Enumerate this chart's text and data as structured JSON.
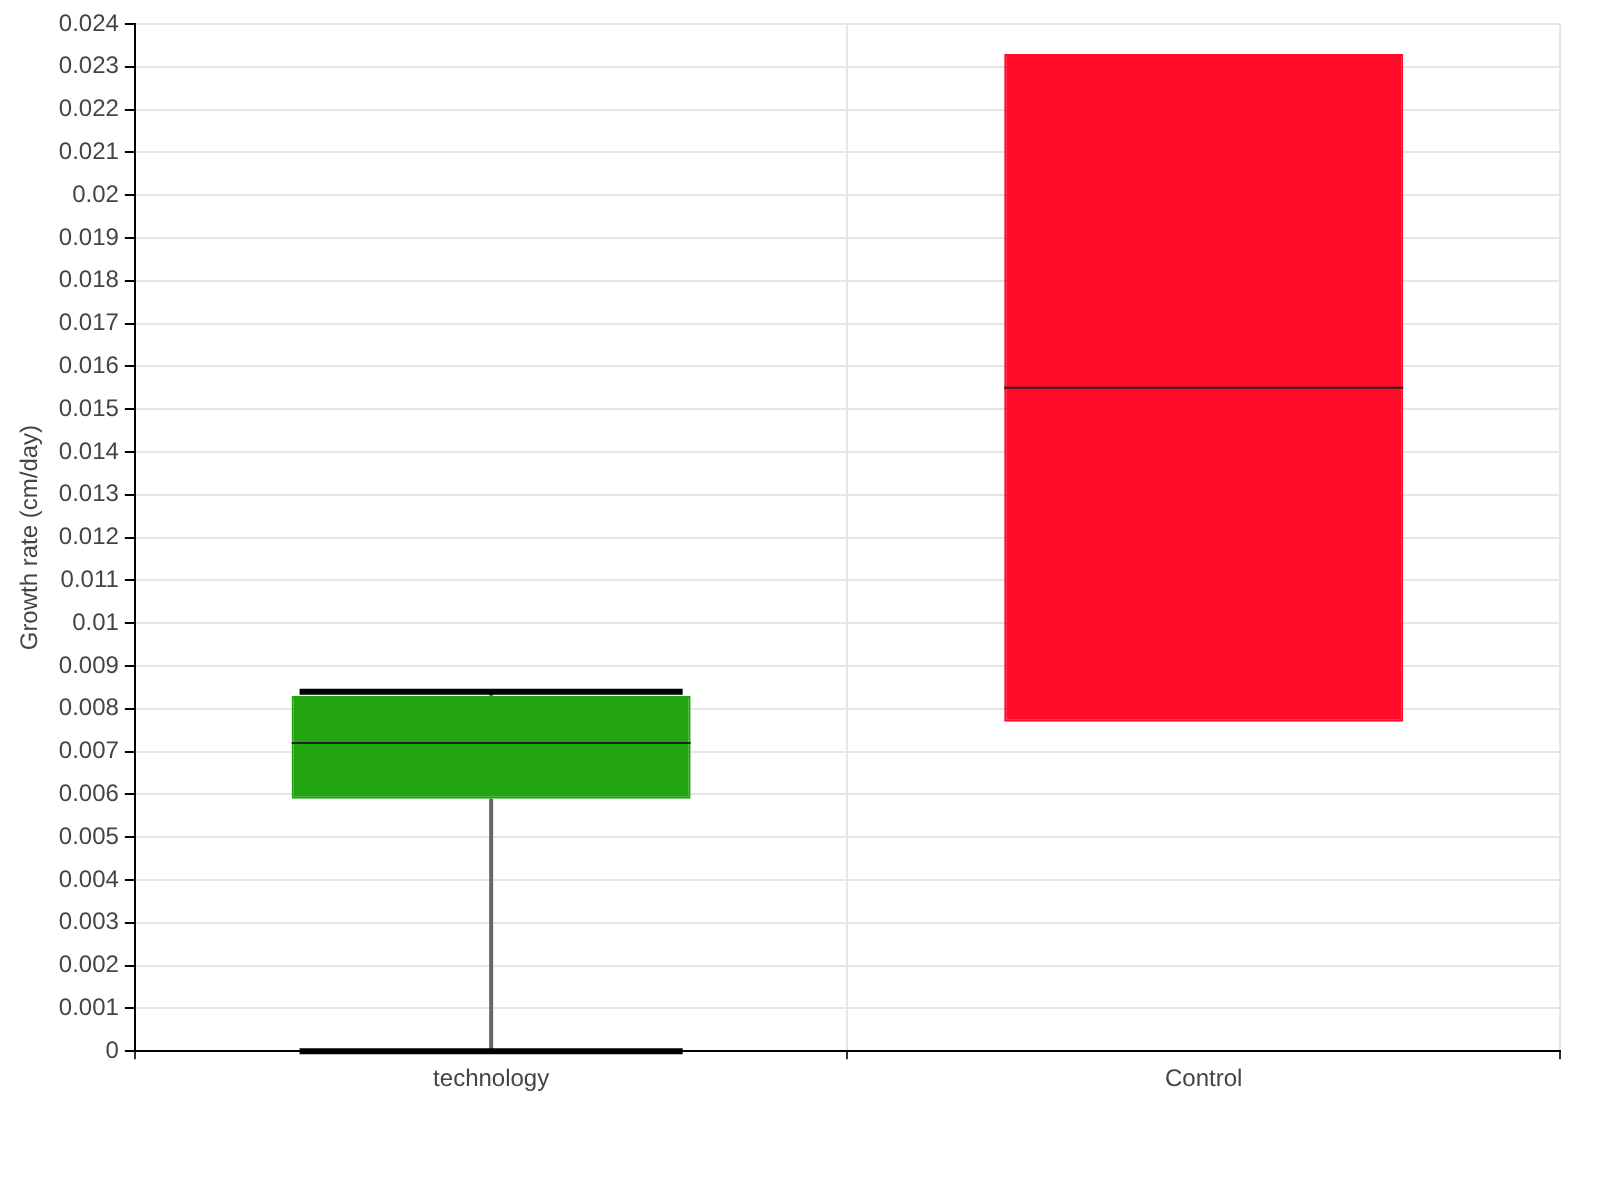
{
  "chart_data": {
    "type": "box",
    "ylabel": "Growth rate (cm/day)",
    "categories": [
      "technology",
      "Control"
    ],
    "boxes": [
      {
        "low": 0,
        "q1": 0.0059,
        "median": 0.0072,
        "q3": 0.0083,
        "high": 0.0084
      },
      {
        "low": 0.0077,
        "q1": 0.0077,
        "median": 0.0155,
        "q3": 0.0233,
        "high": 0.0233
      }
    ],
    "colors": [
      "#21a40f",
      "#ff0c28"
    ],
    "ylim": [
      0,
      0.024
    ],
    "yticks": [
      0,
      0.001,
      0.002,
      0.003,
      0.004,
      0.005,
      0.006,
      0.007,
      0.008,
      0.009,
      0.01,
      0.011,
      0.012,
      0.013,
      0.014,
      0.015,
      0.016,
      0.017,
      0.018,
      0.019,
      0.02,
      0.021,
      0.022,
      0.023,
      0.024
    ],
    "grid": true
  }
}
